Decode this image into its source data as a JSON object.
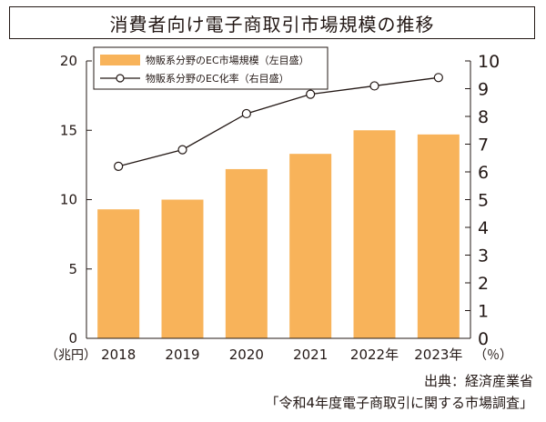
{
  "chart_data": {
    "type": "bar+line",
    "title": "消費者向け電子商取引市場規模の推移",
    "categories": [
      "2018",
      "2019",
      "2020",
      "2021",
      "2022年",
      "2023年"
    ],
    "series": [
      {
        "name": "物販系分野のEC市場規模（左目盛）",
        "type": "bar",
        "axis": "left",
        "color": "#f8b35a",
        "values": [
          9.3,
          10.0,
          12.2,
          13.3,
          15.0,
          14.7
        ]
      },
      {
        "name": "物販系分野のEC化率（右目盛）",
        "type": "line",
        "axis": "right",
        "color": "#231815",
        "values": [
          6.2,
          6.8,
          8.1,
          8.8,
          9.1,
          9.4
        ]
      }
    ],
    "left_axis": {
      "label": "（兆円）",
      "min": 0,
      "max": 20,
      "ticks": [
        0,
        5,
        10,
        15,
        20
      ]
    },
    "right_axis": {
      "label": "（％）",
      "min": 0,
      "max": 10,
      "ticks": [
        0,
        1,
        2,
        3,
        4,
        5,
        6,
        7,
        8,
        9,
        10
      ]
    },
    "legend_position": "top-left"
  },
  "source": {
    "line1": "出典：経済産業省",
    "line2": "「令和4年度電子商取引に関する市場調査」"
  }
}
